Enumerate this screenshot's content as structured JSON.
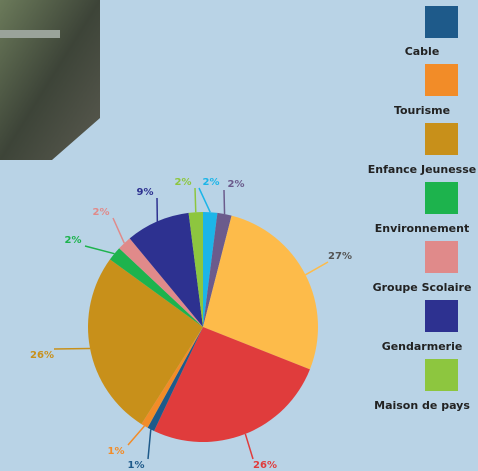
{
  "chart_data": {
    "type": "pie",
    "values": [
      2,
      2,
      27,
      26,
      1,
      1,
      26,
      2,
      2,
      9,
      2
    ],
    "value_labels": [
      "2%",
      "2%",
      "27%",
      "26%",
      "1%",
      "1%",
      "26%",
      "2%",
      "2%",
      "9%",
      "2%"
    ],
    "colors": [
      "#1cb5e8",
      "#6b5b8c",
      "#fdbb4a",
      "#e03c3c",
      "#1e5a8a",
      "#f28c28",
      "#c8901a",
      "#1db34d",
      "#e08a8a",
      "#2d3190",
      "#8dc63f"
    ],
    "legend": [
      {
        "name": "Cable",
        "color": "#f28c28"
      },
      {
        "name": "Tourisme",
        "color": "#c8901a"
      },
      {
        "name": "Enfance Jeunesse",
        "color": "#1db34d"
      },
      {
        "name": "Environnement",
        "color": "#e08a8a"
      },
      {
        "name": "Groupe Scolaire",
        "color": "#2d3190"
      },
      {
        "name": "Gendarmerie",
        "color": "#8dc63f"
      },
      {
        "name": "Maison de pays"
      }
    ]
  }
}
